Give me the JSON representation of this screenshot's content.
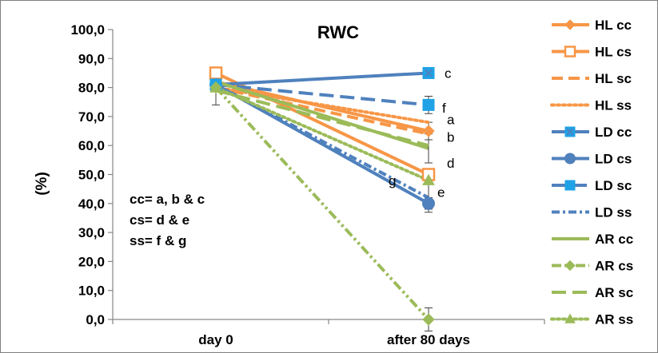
{
  "chart_data": {
    "type": "line",
    "title": "RWC",
    "ylabel": "(%)",
    "xlabel": "",
    "categories": [
      "day 0",
      "after 80 days"
    ],
    "ylim": [
      0,
      100
    ],
    "yticks": [
      "0,0",
      "10,0",
      "20,0",
      "30,0",
      "40,0",
      "50,0",
      "60,0",
      "70,0",
      "80,0",
      "90,0",
      "100,0"
    ],
    "grid": false,
    "legend_position": "right",
    "annotation_lines": [
      "cc= a, b & c",
      "cs= d & e",
      "ss= f & g"
    ],
    "point_letters": [
      {
        "text": "c",
        "y": 85
      },
      {
        "text": "f",
        "y": 73
      },
      {
        "text": "a",
        "y": 69
      },
      {
        "text": "b",
        "y": 63
      },
      {
        "text": "d",
        "y": 54
      },
      {
        "text": "g",
        "y": 48
      },
      {
        "text": "e",
        "y": 44
      }
    ],
    "series": [
      {
        "name": "HL cc",
        "color": "#F79646",
        "dash": "solid",
        "marker": "diamond-filled",
        "values": [
          82,
          65
        ],
        "err": [
          0,
          3
        ]
      },
      {
        "name": "HL cs",
        "color": "#F79646",
        "dash": "solid",
        "marker": "square-open",
        "values": [
          85,
          50
        ],
        "err": [
          0,
          0
        ]
      },
      {
        "name": "HL sc",
        "color": "#F79646",
        "dash": "dash",
        "marker": "none",
        "values": [
          80,
          64
        ],
        "err": [
          0,
          0
        ]
      },
      {
        "name": "HL ss",
        "color": "#F79646",
        "dash": "dot",
        "marker": "none",
        "values": [
          80,
          68
        ],
        "err": [
          0,
          0
        ]
      },
      {
        "name": "LD cc",
        "color": "#4F81BD",
        "dash": "solid",
        "marker": "square-x",
        "values": [
          81,
          85
        ],
        "err": [
          0,
          0
        ]
      },
      {
        "name": "LD cs",
        "color": "#4F81BD",
        "dash": "solid",
        "marker": "circle",
        "values": [
          81,
          40
        ],
        "err": [
          0,
          2
        ]
      },
      {
        "name": "LD sc",
        "color": "#4F81BD",
        "dash": "longdash",
        "marker": "square-blue",
        "values": [
          81,
          74
        ],
        "err": [
          0,
          3
        ]
      },
      {
        "name": "LD ss",
        "color": "#4F81BD",
        "dash": "dashdot",
        "marker": "none",
        "values": [
          81,
          42
        ],
        "err": [
          0,
          5
        ]
      },
      {
        "name": "AR cc",
        "color": "#9BBB59",
        "dash": "solid",
        "marker": "none",
        "values": [
          82,
          59
        ],
        "err": [
          0,
          5
        ]
      },
      {
        "name": "AR cs",
        "color": "#9BBB59",
        "dash": "dashdotdot",
        "marker": "diamond-filled",
        "values": [
          80,
          0
        ],
        "err": [
          0,
          4
        ]
      },
      {
        "name": "AR sc",
        "color": "#9BBB59",
        "dash": "longdash",
        "marker": "none",
        "values": [
          79,
          60
        ],
        "err": [
          0,
          0
        ]
      },
      {
        "name": "AR ss",
        "color": "#9BBB59",
        "dash": "dot",
        "marker": "triangle",
        "values": [
          80,
          48
        ],
        "err": [
          0,
          0
        ]
      }
    ]
  }
}
